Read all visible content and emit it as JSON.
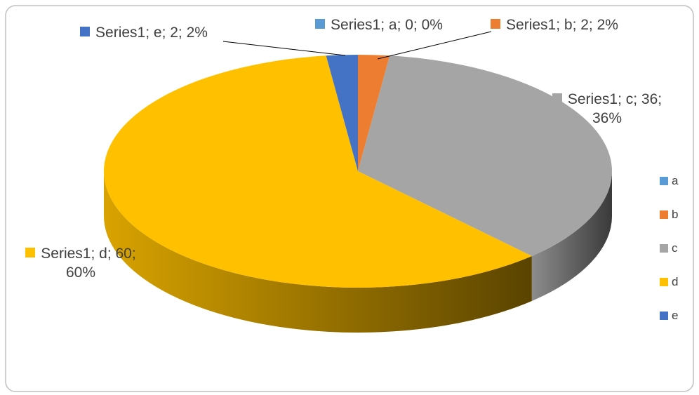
{
  "chart_data": {
    "type": "pie",
    "series": [
      {
        "name": "Series1",
        "values": [
          0,
          2,
          36,
          60,
          2
        ]
      }
    ],
    "categories": [
      "a",
      "b",
      "c",
      "d",
      "e"
    ],
    "colors": [
      "#5b9bd5",
      "#ed7d31",
      "#a5a5a5",
      "#ffc000",
      "#4472c4"
    ],
    "value_labels": [
      "Series1; a; 0; 0%",
      "Series1; b; 2; 2%",
      "Series1; c; 36; 36%",
      "Series1; d; 60; 60%",
      "Series1; e; 2; 2%"
    ],
    "legend": "right"
  }
}
